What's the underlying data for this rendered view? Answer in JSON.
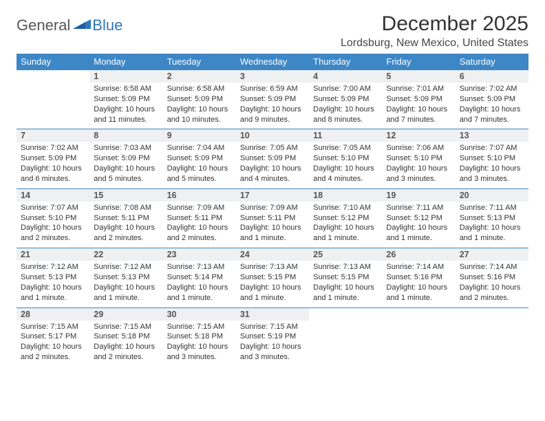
{
  "brand": {
    "text1": "General",
    "text2": "Blue"
  },
  "title": "December 2025",
  "location": "Lordsburg, New Mexico, United States",
  "colors": {
    "header_bg": "#3d87c7",
    "header_text": "#ffffff",
    "daynum_bg": "#eef0f1",
    "row_border": "#3d87c7",
    "brand_blue": "#2f78bd",
    "text": "#333333"
  },
  "day_headers": [
    "Sunday",
    "Monday",
    "Tuesday",
    "Wednesday",
    "Thursday",
    "Friday",
    "Saturday"
  ],
  "weeks": [
    [
      null,
      {
        "n": "1",
        "sr": "Sunrise: 6:58 AM",
        "ss": "Sunset: 5:09 PM",
        "dl": "Daylight: 10 hours and 11 minutes."
      },
      {
        "n": "2",
        "sr": "Sunrise: 6:58 AM",
        "ss": "Sunset: 5:09 PM",
        "dl": "Daylight: 10 hours and 10 minutes."
      },
      {
        "n": "3",
        "sr": "Sunrise: 6:59 AM",
        "ss": "Sunset: 5:09 PM",
        "dl": "Daylight: 10 hours and 9 minutes."
      },
      {
        "n": "4",
        "sr": "Sunrise: 7:00 AM",
        "ss": "Sunset: 5:09 PM",
        "dl": "Daylight: 10 hours and 8 minutes."
      },
      {
        "n": "5",
        "sr": "Sunrise: 7:01 AM",
        "ss": "Sunset: 5:09 PM",
        "dl": "Daylight: 10 hours and 7 minutes."
      },
      {
        "n": "6",
        "sr": "Sunrise: 7:02 AM",
        "ss": "Sunset: 5:09 PM",
        "dl": "Daylight: 10 hours and 7 minutes."
      }
    ],
    [
      {
        "n": "7",
        "sr": "Sunrise: 7:02 AM",
        "ss": "Sunset: 5:09 PM",
        "dl": "Daylight: 10 hours and 6 minutes."
      },
      {
        "n": "8",
        "sr": "Sunrise: 7:03 AM",
        "ss": "Sunset: 5:09 PM",
        "dl": "Daylight: 10 hours and 5 minutes."
      },
      {
        "n": "9",
        "sr": "Sunrise: 7:04 AM",
        "ss": "Sunset: 5:09 PM",
        "dl": "Daylight: 10 hours and 5 minutes."
      },
      {
        "n": "10",
        "sr": "Sunrise: 7:05 AM",
        "ss": "Sunset: 5:09 PM",
        "dl": "Daylight: 10 hours and 4 minutes."
      },
      {
        "n": "11",
        "sr": "Sunrise: 7:05 AM",
        "ss": "Sunset: 5:10 PM",
        "dl": "Daylight: 10 hours and 4 minutes."
      },
      {
        "n": "12",
        "sr": "Sunrise: 7:06 AM",
        "ss": "Sunset: 5:10 PM",
        "dl": "Daylight: 10 hours and 3 minutes."
      },
      {
        "n": "13",
        "sr": "Sunrise: 7:07 AM",
        "ss": "Sunset: 5:10 PM",
        "dl": "Daylight: 10 hours and 3 minutes."
      }
    ],
    [
      {
        "n": "14",
        "sr": "Sunrise: 7:07 AM",
        "ss": "Sunset: 5:10 PM",
        "dl": "Daylight: 10 hours and 2 minutes."
      },
      {
        "n": "15",
        "sr": "Sunrise: 7:08 AM",
        "ss": "Sunset: 5:11 PM",
        "dl": "Daylight: 10 hours and 2 minutes."
      },
      {
        "n": "16",
        "sr": "Sunrise: 7:09 AM",
        "ss": "Sunset: 5:11 PM",
        "dl": "Daylight: 10 hours and 2 minutes."
      },
      {
        "n": "17",
        "sr": "Sunrise: 7:09 AM",
        "ss": "Sunset: 5:11 PM",
        "dl": "Daylight: 10 hours and 1 minute."
      },
      {
        "n": "18",
        "sr": "Sunrise: 7:10 AM",
        "ss": "Sunset: 5:12 PM",
        "dl": "Daylight: 10 hours and 1 minute."
      },
      {
        "n": "19",
        "sr": "Sunrise: 7:11 AM",
        "ss": "Sunset: 5:12 PM",
        "dl": "Daylight: 10 hours and 1 minute."
      },
      {
        "n": "20",
        "sr": "Sunrise: 7:11 AM",
        "ss": "Sunset: 5:13 PM",
        "dl": "Daylight: 10 hours and 1 minute."
      }
    ],
    [
      {
        "n": "21",
        "sr": "Sunrise: 7:12 AM",
        "ss": "Sunset: 5:13 PM",
        "dl": "Daylight: 10 hours and 1 minute."
      },
      {
        "n": "22",
        "sr": "Sunrise: 7:12 AM",
        "ss": "Sunset: 5:13 PM",
        "dl": "Daylight: 10 hours and 1 minute."
      },
      {
        "n": "23",
        "sr": "Sunrise: 7:13 AM",
        "ss": "Sunset: 5:14 PM",
        "dl": "Daylight: 10 hours and 1 minute."
      },
      {
        "n": "24",
        "sr": "Sunrise: 7:13 AM",
        "ss": "Sunset: 5:15 PM",
        "dl": "Daylight: 10 hours and 1 minute."
      },
      {
        "n": "25",
        "sr": "Sunrise: 7:13 AM",
        "ss": "Sunset: 5:15 PM",
        "dl": "Daylight: 10 hours and 1 minute."
      },
      {
        "n": "26",
        "sr": "Sunrise: 7:14 AM",
        "ss": "Sunset: 5:16 PM",
        "dl": "Daylight: 10 hours and 1 minute."
      },
      {
        "n": "27",
        "sr": "Sunrise: 7:14 AM",
        "ss": "Sunset: 5:16 PM",
        "dl": "Daylight: 10 hours and 2 minutes."
      }
    ],
    [
      {
        "n": "28",
        "sr": "Sunrise: 7:15 AM",
        "ss": "Sunset: 5:17 PM",
        "dl": "Daylight: 10 hours and 2 minutes."
      },
      {
        "n": "29",
        "sr": "Sunrise: 7:15 AM",
        "ss": "Sunset: 5:18 PM",
        "dl": "Daylight: 10 hours and 2 minutes."
      },
      {
        "n": "30",
        "sr": "Sunrise: 7:15 AM",
        "ss": "Sunset: 5:18 PM",
        "dl": "Daylight: 10 hours and 3 minutes."
      },
      {
        "n": "31",
        "sr": "Sunrise: 7:15 AM",
        "ss": "Sunset: 5:19 PM",
        "dl": "Daylight: 10 hours and 3 minutes."
      },
      null,
      null,
      null
    ]
  ]
}
